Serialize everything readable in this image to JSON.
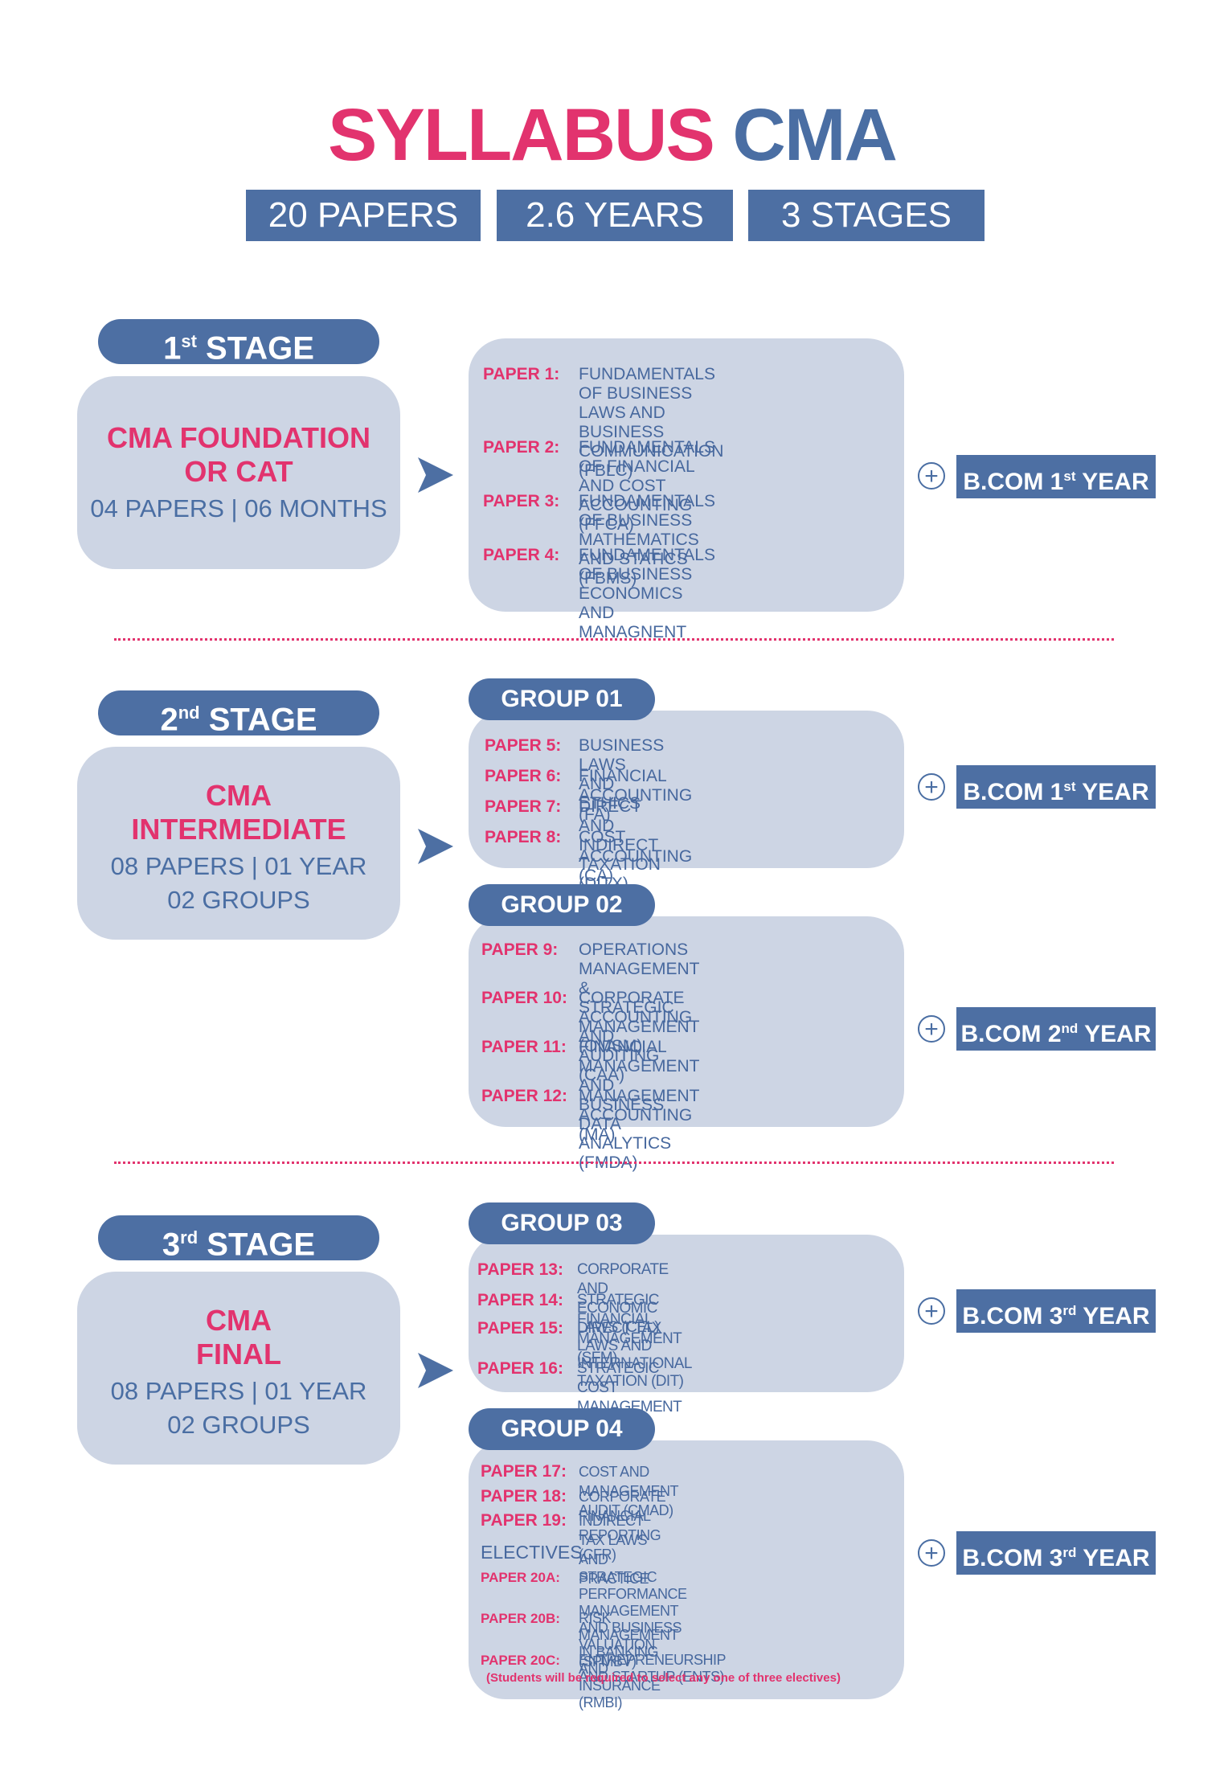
{
  "title": {
    "part1": "SYLLABUS",
    "part2": "CMA"
  },
  "tags": [
    "20 PAPERS",
    "2.6 YEARS",
    "3 STAGES"
  ],
  "stages": [
    {
      "pill_num": "1",
      "pill_sup": "st",
      "pill_word": "STAGE",
      "heading": [
        "CMA FOUNDATION",
        "OR CAT"
      ],
      "sub": [
        "04 PAPERS | 06 MONTHS"
      ],
      "papers": [
        {
          "label": "PAPER 1:",
          "text": "FUNDAMENTALS OF  BUSINESS\nLAWS AND BUSINESS\nCOMMUNICATION (FBLC)"
        },
        {
          "label": "PAPER 2:",
          "text": "FUNDAMENTALS OF FINANCIAL\nAND COST ACCOUNTING (FFCA)"
        },
        {
          "label": "PAPER 3:",
          "text": "FUNDAMENTALS OF BUSINESS\nMATHEMATICS AND STATICS (FBMS)"
        },
        {
          "label": "PAPER 4:",
          "text": "FUNDAMENTALS OF BUSINESS\nECONOMICS AND MANAGNENT"
        }
      ],
      "bcom": {
        "pre": "B.COM 1",
        "sup": "st",
        "post": " YEAR"
      }
    },
    {
      "pill_num": "2",
      "pill_sup": "nd",
      "pill_word": "STAGE",
      "heading": [
        "CMA",
        "INTERMEDIATE"
      ],
      "sub": [
        "08 PAPERS | 01 YEAR",
        "02 GROUPS"
      ],
      "groups": [
        {
          "name": "GROUP 01",
          "papers": [
            {
              "label": "PAPER 5:",
              "text": "BUSINESS LAWS AND ETHICS"
            },
            {
              "label": "PAPER 6:",
              "text": "FINANCIAL ACCOUNTING (FA)"
            },
            {
              "label": "PAPER 7:",
              "text": "DIRECT AND INDIRECT TAXATION (DITX)"
            },
            {
              "label": "PAPER 8:",
              "text": "COST ACCOUNTING (CA)"
            }
          ],
          "bcom": {
            "pre": "B.COM 1",
            "sup": "st",
            "post": " YEAR"
          }
        },
        {
          "name": "GROUP 02",
          "papers": [
            {
              "label": "PAPER 9:",
              "text": "OPERATIONS MANAGEMENT &\nSTRATEGIC MANAGEMENT (OMSM)"
            },
            {
              "label": "PAPER 10:",
              "text": "CORPORATE ACCOUNTING AND\nAUDITING (CAA)"
            },
            {
              "label": "PAPER 11:",
              "text": "FINANCIAL MANAGEMENT AND\nBUSINESS DATA ANALYTICS (FMDA)"
            },
            {
              "label": "PAPER 12:",
              "text": "MANAGEMENT ACCOUNTING (MA)"
            }
          ],
          "bcom": {
            "pre": "B.COM 2",
            "sup": "nd",
            "post": " YEAR"
          }
        }
      ]
    },
    {
      "pill_num": "3",
      "pill_sup": "rd",
      "pill_word": "STAGE",
      "heading": [
        "CMA",
        "FINAL"
      ],
      "sub": [
        "08 PAPERS | 01 YEAR",
        "02 GROUPS"
      ],
      "groups": [
        {
          "name": "GROUP 03",
          "papers": [
            {
              "label": "PAPER 13:",
              "text": "CORPORATE AND ECONOMIC LAWS (CEL)"
            },
            {
              "label": "PAPER 14:",
              "text": "STRATEGIC FINANCIAL MANAGEMENT (SFM)"
            },
            {
              "label": "PAPER 15:",
              "text": "DIRECT TAX LAWS AND INTERNATIONAL\nTAXATION (DIT)"
            },
            {
              "label": "PAPER 16:",
              "text": "STRATEGIC COST MANAGEMENT (SCM)"
            }
          ],
          "bcom": {
            "pre": "B.COM 3",
            "sup": "rd",
            "post": " YEAR"
          }
        },
        {
          "name": "GROUP 04",
          "papers": [
            {
              "label": "PAPER 17:",
              "text": "COST AND MANAGEMENT AUDIT (CMAD)"
            },
            {
              "label": "PAPER 18:",
              "text": "CORPORATE FINANCIAL REPORTING (CFR)"
            },
            {
              "label": "PAPER 19:",
              "text": "INDIRECT TAX LAWS AND PRACTICE"
            }
          ],
          "electives_label": "ELECTIVES",
          "electives": [
            {
              "label": "PAPER 20A:",
              "text": "STRATEGIC PERFORMANCE MANAGEMENT\nAND BUSINESS VALUATION (SPMBV)"
            },
            {
              "label": "PAPER 20B:",
              "text": "RISK MANAGEMENT IN BANKING AND\nINSURANCE (RMBI)"
            },
            {
              "label": "PAPER 20C:",
              "text": "ENTREPRENEURSHIP AND STARTUP (ENTS)"
            }
          ],
          "note": "(Students will be required to select any one of three electives)",
          "bcom": {
            "pre": "B.COM 3",
            "sup": "rd",
            "post": " YEAR"
          }
        }
      ]
    }
  ],
  "plus_symbol": "+",
  "colors": {
    "pink": "#e2336e",
    "blue": "#4d6fa3",
    "box": "#cdd5e4"
  }
}
